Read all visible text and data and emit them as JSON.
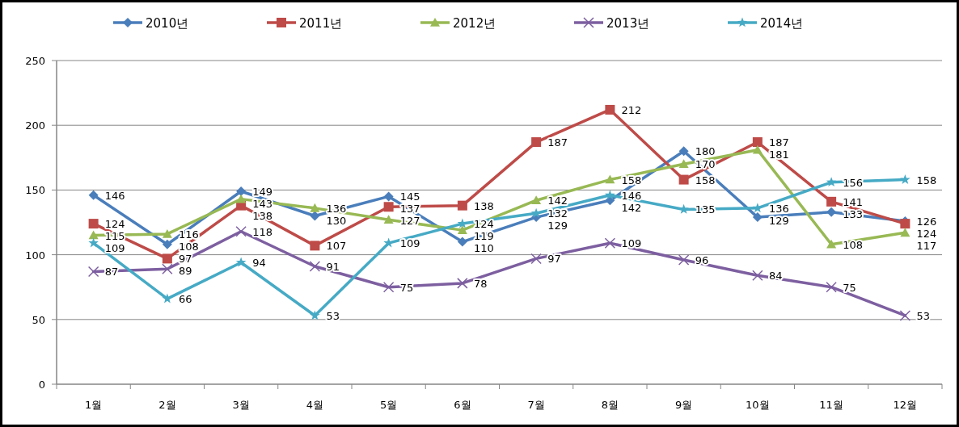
{
  "chart_data": {
    "type": "line",
    "categories": [
      "1월",
      "2월",
      "3월",
      "4월",
      "5월",
      "6월",
      "7월",
      "8월",
      "9월",
      "10월",
      "11월",
      "12월"
    ],
    "series": [
      {
        "name": "2010년",
        "color": "#4a7ebb",
        "marker": "diamond",
        "values": [
          146,
          108,
          149,
          130,
          145,
          110,
          129,
          142,
          180,
          129,
          133,
          126
        ]
      },
      {
        "name": "2011년",
        "color": "#be4b48",
        "marker": "square",
        "values": [
          124,
          97,
          138,
          107,
          137,
          138,
          187,
          212,
          158,
          187,
          141,
          124
        ]
      },
      {
        "name": "2012년",
        "color": "#98b954",
        "marker": "triangle",
        "values": [
          115,
          116,
          143,
          136,
          127,
          119,
          142,
          158,
          170,
          181,
          108,
          117
        ]
      },
      {
        "name": "2013년",
        "color": "#7d5fa0",
        "marker": "cross",
        "values": [
          87,
          89,
          118,
          91,
          75,
          78,
          97,
          109,
          96,
          84,
          75,
          53
        ]
      },
      {
        "name": "2014년",
        "color": "#46aac5",
        "marker": "star",
        "values": [
          109,
          66,
          94,
          53,
          109,
          124,
          132,
          146,
          135,
          136,
          156,
          158
        ]
      }
    ],
    "ylim": [
      0,
      250
    ],
    "yticks": [
      0,
      50,
      100,
      150,
      200,
      250
    ],
    "grid": "y",
    "legend": "top",
    "data_labels": true,
    "line_style": "solid"
  }
}
